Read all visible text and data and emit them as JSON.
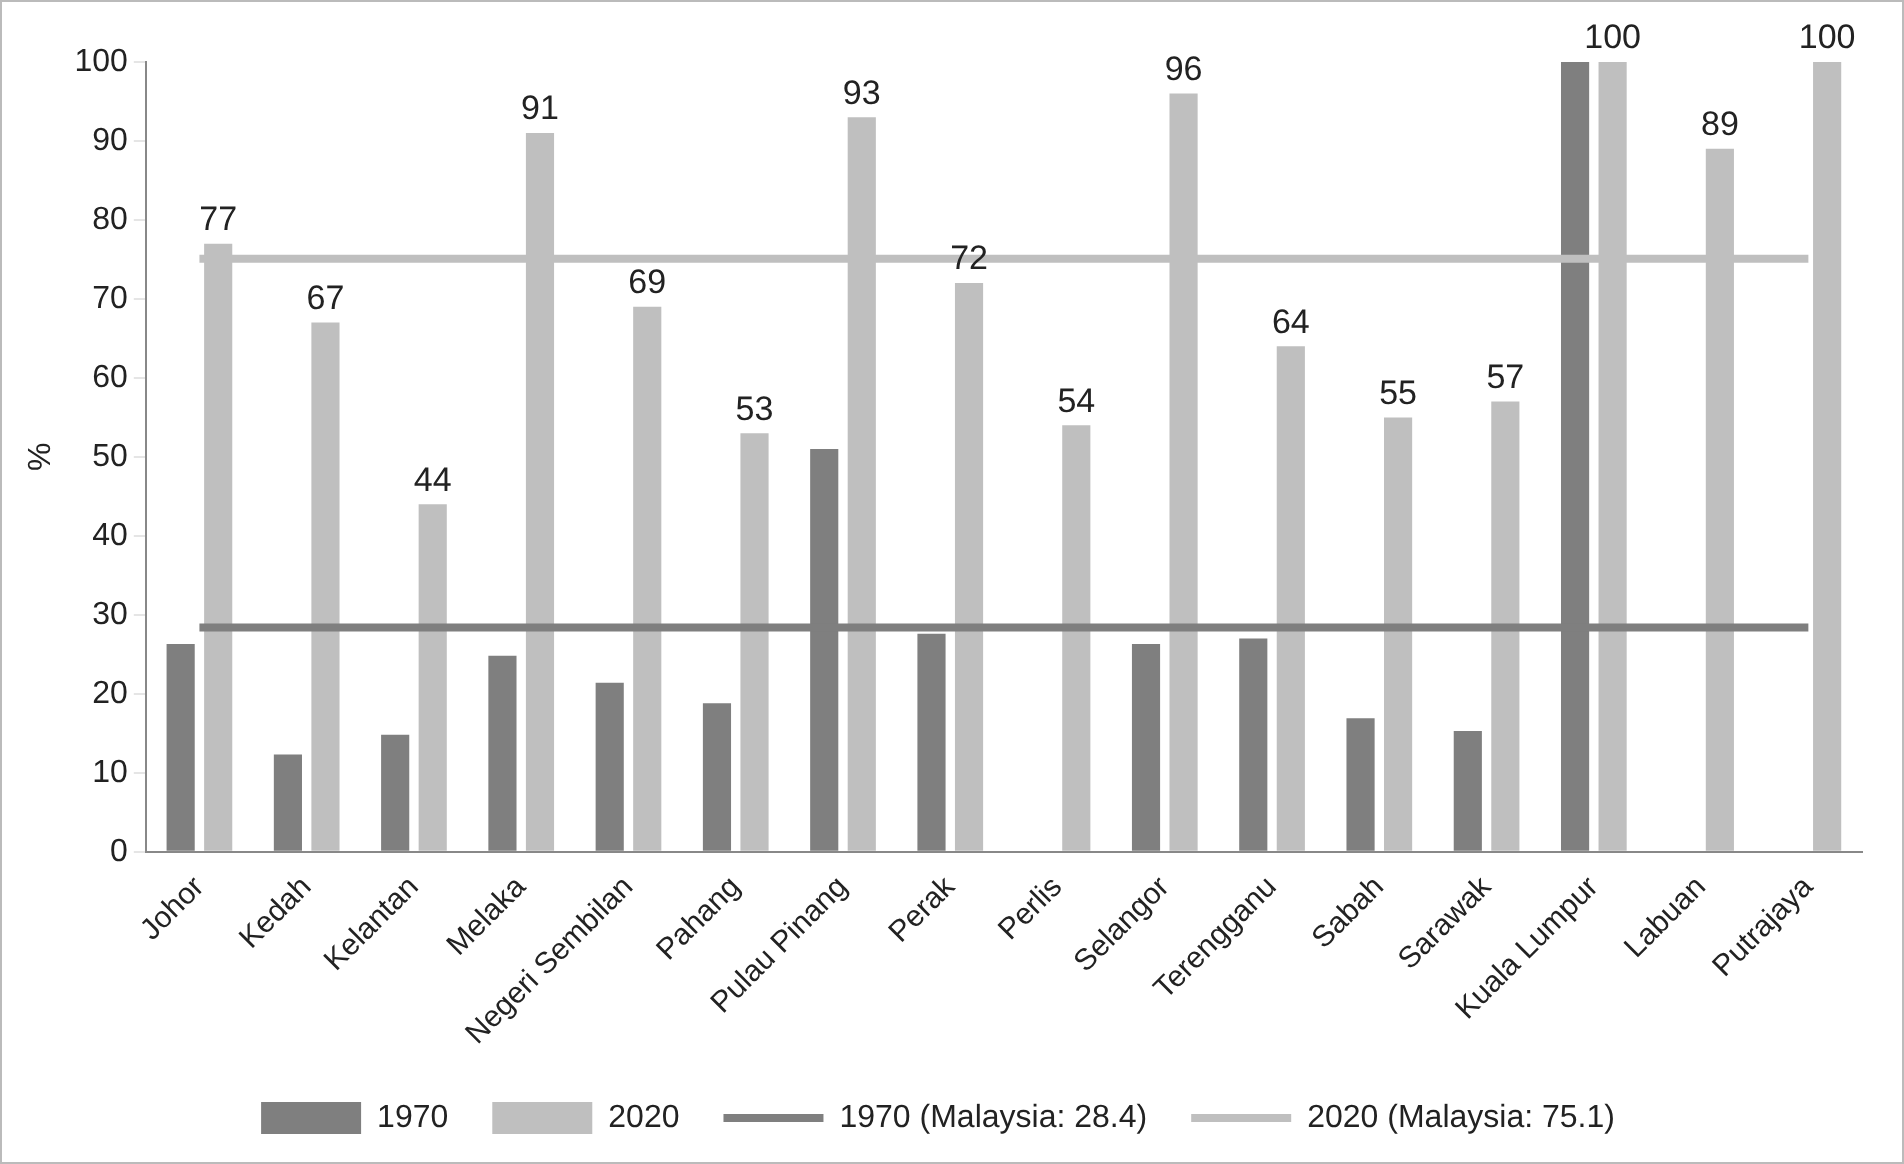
{
  "chart_data": {
    "type": "bar",
    "ylabel": "%",
    "categories": [
      "Johor",
      "Kedah",
      "Kelantan",
      "Melaka",
      "Negeri Sembilan",
      "Pahang",
      "Pulau Pinang",
      "Perak",
      "Perlis",
      "Selangor",
      "Terengganu",
      "Sabah",
      "Sarawak",
      "Kuala Lumpur",
      "Labuan",
      "Putrajaya"
    ],
    "series": [
      {
        "name": "1970",
        "color": "#7f7f7f",
        "values": [
          26.3,
          12.3,
          14.8,
          24.8,
          21.4,
          18.8,
          51,
          27.6,
          null,
          26.3,
          27,
          16.9,
          15.3,
          100,
          null,
          null
        ]
      },
      {
        "name": "2020",
        "color": "#bfbfbf",
        "values": [
          77,
          67,
          44,
          91,
          69,
          53,
          93,
          72,
          54,
          96,
          64,
          55,
          57,
          100,
          89,
          100
        ],
        "value_labels": [
          "77",
          "67",
          "44",
          "91",
          "69",
          "53",
          "93",
          "72",
          "54",
          "96",
          "64",
          "55",
          "57",
          "100",
          "89",
          "100"
        ]
      },
      {
        "name": "1970 (Malaysia: 28.4)",
        "type": "line",
        "color": "#7f7f7f",
        "values": [
          28.4,
          28.4,
          28.4,
          28.4,
          28.4,
          28.4,
          28.4,
          28.4,
          28.4,
          28.4,
          28.4,
          28.4,
          28.4,
          28.4,
          28.4,
          28.4
        ]
      },
      {
        "name": "2020 (Malaysia: 75.1)",
        "type": "line",
        "color": "#bfbfbf",
        "values": [
          75.1,
          75.1,
          75.1,
          75.1,
          75.1,
          75.1,
          75.1,
          75.1,
          75.1,
          75.1,
          75.1,
          75.1,
          75.1,
          75.1,
          75.1,
          75.1
        ]
      }
    ],
    "ylim": [
      0,
      100
    ],
    "yticks": [
      0,
      10,
      20,
      30,
      40,
      50,
      60,
      70,
      80,
      90,
      100
    ],
    "grid": false,
    "legend": "bottom",
    "marker": "none",
    "line_style": "solid"
  }
}
